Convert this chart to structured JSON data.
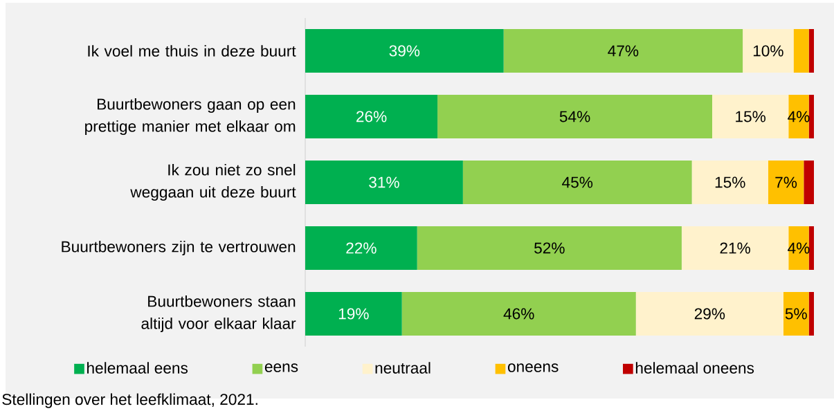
{
  "chart_data": {
    "type": "bar",
    "orientation": "horizontal",
    "stacked": true,
    "categories": [
      "Ik voel me thuis in deze buurt",
      "Buurtbewoners gaan op een prettige manier met elkaar om",
      "Ik zou niet zo snel weggaan uit deze buurt",
      "Buurtbewoners zijn te vertrouwen",
      "Buurtbewoners staan altijd voor elkaar klaar"
    ],
    "series": [
      {
        "name": "helemaal eens",
        "color": "#00b050",
        "values": [
          39,
          26,
          31,
          22,
          19
        ],
        "value_labels": [
          "39%",
          "26%",
          "31%",
          "22%",
          "19%"
        ]
      },
      {
        "name": "eens",
        "color": "#92d050",
        "values": [
          47,
          54,
          45,
          52,
          46
        ],
        "value_labels": [
          "47%",
          "54%",
          "45%",
          "52%",
          "46%"
        ]
      },
      {
        "name": "neutraal",
        "color": "#fff2cc",
        "values": [
          10,
          15,
          15,
          21,
          29
        ],
        "value_labels": [
          "10%",
          "15%",
          "15%",
          "21%",
          "29%"
        ]
      },
      {
        "name": "oneens",
        "color": "#ffc000",
        "values": [
          3,
          4,
          7,
          4,
          5
        ],
        "value_labels": [
          null,
          "4%",
          "7%",
          "4%",
          "5%"
        ]
      },
      {
        "name": "helemaal oneens",
        "color": "#c00000",
        "values": [
          1,
          1,
          2,
          1,
          1
        ],
        "value_labels": [
          null,
          null,
          null,
          null,
          null
        ]
      }
    ],
    "xlim": [
      0,
      100
    ],
    "legend": "bottom",
    "annotations": [
      "Stellingen over het leefklimaat, 2021."
    ]
  }
}
